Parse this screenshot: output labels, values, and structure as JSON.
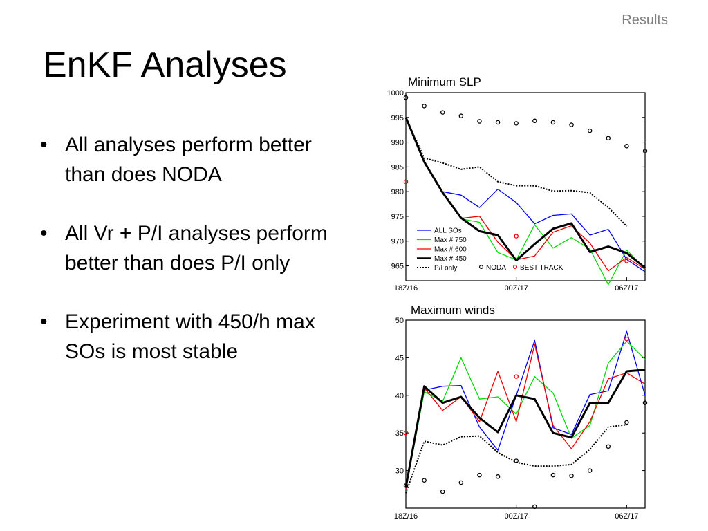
{
  "header": {
    "section_label": "Results"
  },
  "slide": {
    "title": "EnKF Analyses",
    "bullets": [
      "All analyses perform better than does NODA",
      "All Vr + P/I analyses perform better than does P/I only",
      "Experiment with 450/h max SOs is most stable"
    ]
  },
  "chart_data": [
    {
      "type": "line",
      "title": "Minimum SLP",
      "xticks": [
        "18Z/16",
        "00Z/17",
        "06Z/17"
      ],
      "ylim": [
        962,
        1000
      ],
      "yticks": [
        965,
        970,
        975,
        980,
        985,
        990,
        995,
        1000
      ],
      "x": [
        0,
        1,
        2,
        3,
        4,
        5,
        6,
        7,
        8,
        9,
        10,
        11,
        12,
        13
      ],
      "series": [
        {
          "name": "ALL SOs",
          "color": "#0000ff",
          "style": "solid",
          "values": [
            995.0,
            986.0,
            980.0,
            979.3,
            976.8,
            980.5,
            977.8,
            973.5,
            975.2,
            975.5,
            971.2,
            972.4,
            966.3,
            963.8
          ]
        },
        {
          "name": "Max # 750",
          "color": "#00dd00",
          "style": "solid",
          "values": [
            995.0,
            986.0,
            979.8,
            974.5,
            973.8,
            967.7,
            966.2,
            973.3,
            968.6,
            970.7,
            968.4,
            961.2,
            968.2,
            964.4
          ]
        },
        {
          "name": "Max # 600",
          "color": "#ee0000",
          "style": "solid",
          "values": [
            995.0,
            986.0,
            979.8,
            974.6,
            975.0,
            969.8,
            966.2,
            967.0,
            971.8,
            973.1,
            969.6,
            964.0,
            966.7,
            964.3
          ]
        },
        {
          "name": "Max # 450",
          "color": "#000000",
          "style": "thick",
          "values": [
            995.0,
            986.0,
            979.8,
            974.7,
            972.0,
            971.2,
            966.1,
            969.4,
            972.5,
            973.6,
            967.8,
            968.9,
            967.6,
            964.6
          ]
        },
        {
          "name": "P/I only",
          "color": "#000000",
          "style": "dotted",
          "values": [
            995.0,
            986.8,
            985.8,
            984.5,
            985.0,
            982.0,
            981.2,
            981.2,
            980.1,
            980.2,
            979.8,
            976.8,
            973.0,
            null
          ]
        }
      ],
      "markers": [
        {
          "name": "NODA",
          "color": "#000000",
          "x": [
            0,
            1,
            2,
            3,
            4,
            5,
            6,
            7,
            8,
            9,
            10,
            11,
            12,
            13
          ],
          "values": [
            999.0,
            997.3,
            996.0,
            995.3,
            994.2,
            994.0,
            993.8,
            994.3,
            994.0,
            993.5,
            992.3,
            990.8,
            989.2,
            988.2
          ]
        },
        {
          "name": "BEST TRACK",
          "color": "#ee0000",
          "x": [
            0,
            6,
            12
          ],
          "values": [
            982.0,
            971.0,
            966.0
          ]
        }
      ]
    },
    {
      "type": "line",
      "title": "Maximum winds",
      "xticks": [
        "18Z/16",
        "00Z/17",
        "06Z/17"
      ],
      "ylim": [
        25,
        50
      ],
      "yticks": [
        30,
        35,
        40,
        45,
        50
      ],
      "x": [
        0,
        1,
        2,
        3,
        4,
        5,
        6,
        7,
        8,
        9,
        10,
        11,
        12,
        13
      ],
      "series": [
        {
          "name": "ALL SOs",
          "color": "#0000ff",
          "style": "solid",
          "values": [
            27.5,
            40.7,
            41.2,
            41.3,
            35.8,
            32.7,
            40.0,
            47.3,
            35.7,
            34.8,
            40.1,
            40.6,
            48.5,
            40.0
          ]
        },
        {
          "name": "Max # 750",
          "color": "#00dd00",
          "style": "solid",
          "values": [
            27.5,
            40.5,
            39.2,
            45.0,
            39.5,
            39.8,
            37.5,
            42.5,
            40.3,
            34.3,
            36.0,
            44.3,
            47.2,
            44.8
          ]
        },
        {
          "name": "Max # 600",
          "color": "#ee0000",
          "style": "solid",
          "values": [
            27.5,
            41.0,
            38.0,
            39.8,
            36.5,
            43.2,
            36.5,
            46.8,
            36.0,
            32.9,
            36.5,
            42.2,
            43.0,
            41.5
          ]
        },
        {
          "name": "Max # 450",
          "color": "#000000",
          "style": "thick",
          "values": [
            27.8,
            41.2,
            39.0,
            39.8,
            37.0,
            35.1,
            40.0,
            39.5,
            35.0,
            34.4,
            39.0,
            39.0,
            43.2,
            43.4
          ]
        },
        {
          "name": "P/I only",
          "color": "#000000",
          "style": "dotted",
          "values": [
            27.0,
            33.9,
            33.4,
            34.5,
            34.6,
            32.4,
            31.1,
            30.6,
            30.6,
            30.8,
            32.8,
            35.8,
            36.1,
            null
          ]
        }
      ],
      "markers": [
        {
          "name": "NODA",
          "color": "#000000",
          "x": [
            0,
            1,
            2,
            3,
            4,
            5,
            6,
            7,
            8,
            9,
            10,
            11,
            12,
            13
          ],
          "values": [
            28.0,
            28.7,
            27.2,
            28.4,
            29.4,
            29.2,
            31.3,
            25.2,
            29.4,
            29.3,
            30.0,
            33.2,
            36.4,
            39.0
          ]
        },
        {
          "name": "BEST TRACK",
          "color": "#ee0000",
          "x": [
            0,
            6,
            12
          ],
          "values": [
            35.0,
            42.5,
            47.5
          ]
        }
      ]
    }
  ]
}
